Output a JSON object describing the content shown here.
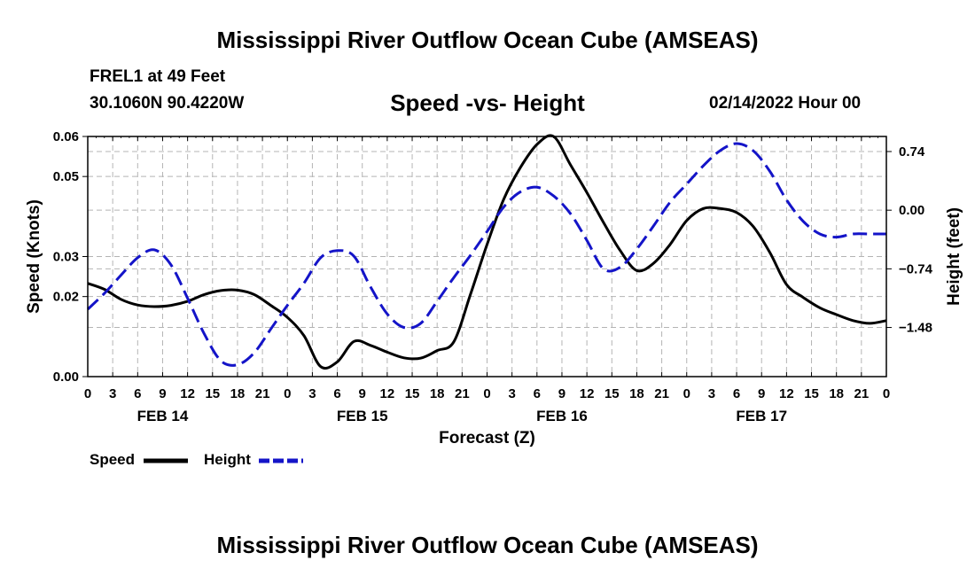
{
  "header": {
    "title": "Mississippi River Outflow Ocean Cube (AMSEAS)",
    "station": "FREL1 at 49 Feet",
    "coordinates": "30.1060N  90.4220W",
    "chart_title": "Speed -vs- Height",
    "date": "02/14/2022 Hour 00"
  },
  "footer": {
    "title": "Mississippi River Outflow Ocean Cube (AMSEAS)"
  },
  "colors": {
    "speed": "#000000",
    "height": "#1414c8",
    "grid": "#b4b4b4"
  },
  "chart_data": {
    "type": "line",
    "title": "Speed -vs- Height",
    "xlabel": "Forecast (Z)",
    "ylabel": "Speed (Knots)",
    "y2label": "Height (feet)",
    "x_range_hours": [
      0,
      96
    ],
    "ylim": [
      0,
      0.06
    ],
    "y2lim": [
      -2.1,
      0.93
    ],
    "x_tick_labels": [
      "0",
      "3",
      "6",
      "9",
      "12",
      "15",
      "18",
      "21",
      "0",
      "3",
      "6",
      "9",
      "12",
      "15",
      "18",
      "21",
      "0",
      "3",
      "6",
      "9",
      "12",
      "15",
      "18",
      "21",
      "0",
      "3",
      "6",
      "9",
      "12",
      "15",
      "18",
      "21",
      "0"
    ],
    "day_labels": [
      {
        "label": "FEB 14",
        "hour": 9
      },
      {
        "label": "FEB 15",
        "hour": 33
      },
      {
        "label": "FEB 16",
        "hour": 57
      },
      {
        "label": "FEB 17",
        "hour": 81
      }
    ],
    "y_ticks": [
      {
        "value": 0.0,
        "label": "0.00"
      },
      {
        "value": 0.02,
        "label": "0.02"
      },
      {
        "value": 0.03,
        "label": "0.03"
      },
      {
        "value": 0.05,
        "label": "0.05"
      },
      {
        "value": 0.06,
        "label": "0.06"
      }
    ],
    "y2_ticks": [
      {
        "value": 0.74,
        "label": "0.74"
      },
      {
        "value": 0.0,
        "label": "0.00"
      },
      {
        "value": -0.74,
        "label": "−0.74"
      },
      {
        "value": -1.48,
        "label": "−1.48"
      }
    ],
    "series": [
      {
        "name": "Speed",
        "axis": "left",
        "style": "solid",
        "x": [
          0,
          2,
          4,
          6,
          8,
          10,
          12,
          14,
          16,
          18,
          20,
          22,
          24,
          26,
          28,
          30,
          32,
          34,
          36,
          38,
          40,
          42,
          44,
          46,
          48,
          50,
          52,
          54,
          56,
          58,
          60,
          62,
          64,
          66,
          68,
          70,
          72,
          74,
          76,
          78,
          80,
          82,
          84,
          86,
          88,
          90,
          92,
          94,
          96
        ],
        "values": [
          0.0233,
          0.0218,
          0.0193,
          0.0179,
          0.0175,
          0.0178,
          0.0188,
          0.0205,
          0.0215,
          0.0216,
          0.0205,
          0.0178,
          0.0148,
          0.0102,
          0.0025,
          0.0037,
          0.0088,
          0.0078,
          0.0061,
          0.0047,
          0.0046,
          0.0065,
          0.0087,
          0.0205,
          0.033,
          0.0443,
          0.0522,
          0.058,
          0.06,
          0.053,
          0.046,
          0.0385,
          0.0315,
          0.0265,
          0.0283,
          0.033,
          0.039,
          0.042,
          0.042,
          0.041,
          0.0375,
          0.031,
          0.023,
          0.0198,
          0.0172,
          0.0155,
          0.014,
          0.0133,
          0.014
        ]
      },
      {
        "name": "Height",
        "axis": "right",
        "style": "dashed",
        "x": [
          0,
          2,
          4,
          6,
          8,
          10,
          12,
          14,
          16,
          18,
          20,
          22,
          24,
          26,
          28,
          30,
          32,
          34,
          36,
          38,
          40,
          42,
          44,
          46,
          48,
          50,
          52,
          54,
          56,
          58,
          60,
          62,
          64,
          66,
          68,
          70,
          72,
          74,
          76,
          78,
          80,
          82,
          84,
          86,
          88,
          90,
          92,
          94,
          96
        ],
        "values": [
          -1.25,
          -1.05,
          -0.82,
          -0.6,
          -0.5,
          -0.69,
          -1.11,
          -1.56,
          -1.9,
          -1.95,
          -1.8,
          -1.5,
          -1.2,
          -0.92,
          -0.6,
          -0.51,
          -0.58,
          -0.97,
          -1.31,
          -1.48,
          -1.43,
          -1.15,
          -0.85,
          -0.57,
          -0.27,
          0.04,
          0.23,
          0.29,
          0.18,
          -0.04,
          -0.38,
          -0.74,
          -0.72,
          -0.49,
          -0.2,
          0.1,
          0.33,
          0.56,
          0.75,
          0.84,
          0.75,
          0.49,
          0.13,
          -0.14,
          -0.3,
          -0.34,
          -0.3,
          -0.3,
          -0.3
        ]
      }
    ],
    "legend": [
      "Speed",
      "Height"
    ],
    "legend_position": "bottom-left"
  }
}
